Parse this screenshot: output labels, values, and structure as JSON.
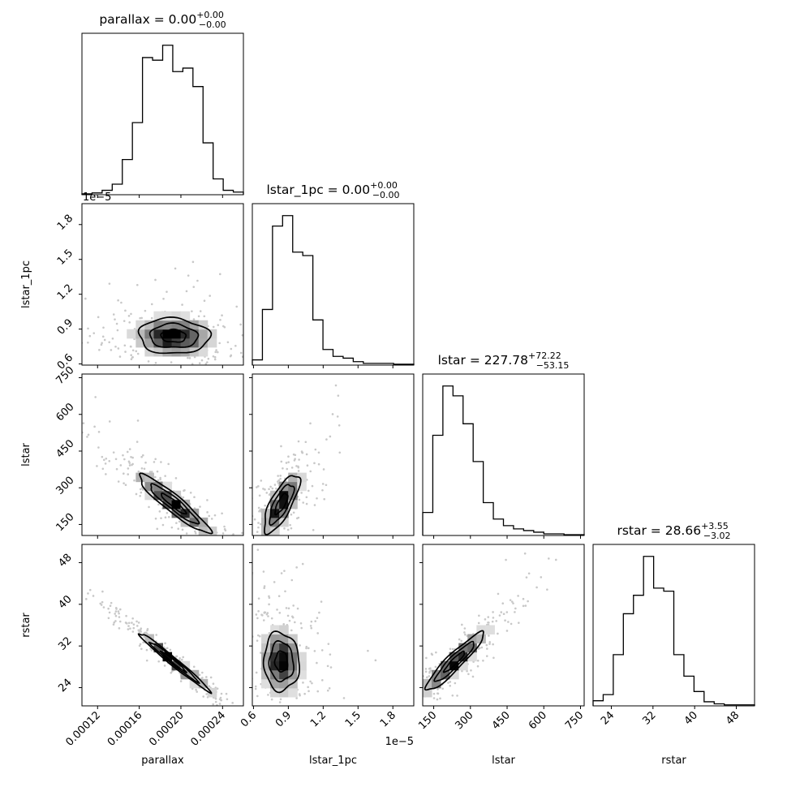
{
  "chart_data": {
    "type": "corner",
    "parameters": [
      {
        "name": "parallax",
        "xlabel": "parallax",
        "ylabel": "",
        "title": {
          "base": "parallax = 0.00",
          "sup": "+0.00",
          "sub": "−0.00"
        },
        "ticks": [
          0.00012,
          0.00016,
          0.0002,
          0.00024
        ],
        "tick_labels": [
          "0.00012",
          "0.00016",
          "0.00020",
          "0.00024"
        ],
        "range": [
          0.000105,
          0.00026
        ],
        "offset_label": "",
        "hist": [
          1,
          2,
          5,
          12,
          40,
          82,
          156,
          153,
          170,
          140,
          144,
          123,
          59,
          18,
          5,
          3
        ]
      },
      {
        "name": "lstar_1pc",
        "xlabel": "lstar_1pc",
        "ylabel": "lstar_1pc",
        "title": {
          "base": "lstar_1pc = 0.00",
          "sup": "+0.00",
          "sub": "−0.00"
        },
        "ticks": [
          0.6,
          0.9,
          1.2,
          1.5,
          1.8
        ],
        "tick_labels": [
          "0.6",
          "0.9",
          "1.2",
          "1.5",
          "1.8"
        ],
        "range": [
          0.59,
          1.98
        ],
        "offset_label": "1e−5",
        "hist": [
          3,
          32,
          80,
          86,
          65,
          63,
          26,
          9,
          5,
          4,
          2,
          1,
          1,
          1,
          0.5,
          0.5
        ]
      },
      {
        "name": "lstar",
        "xlabel": "lstar",
        "ylabel": "lstar",
        "title": {
          "base": "lstar = 227.78",
          "sup": "+72.22",
          "sub": "−53.15"
        },
        "ticks": [
          150,
          300,
          450,
          600,
          750
        ],
        "tick_labels": [
          "150",
          "300",
          "450",
          "600",
          "750"
        ],
        "range": [
          105,
          765
        ],
        "offset_label": "",
        "hist": [
          14,
          61,
          91,
          85,
          68,
          45,
          20,
          10,
          6,
          4,
          3,
          2,
          1,
          1,
          0.5,
          0.5
        ]
      },
      {
        "name": "rstar",
        "xlabel": "rstar",
        "ylabel": "rstar",
        "title": {
          "base": "rstar = 28.66",
          "sup": "+3.55",
          "sub": "−3.02"
        },
        "ticks": [
          24,
          32,
          40,
          48
        ],
        "tick_labels": [
          "24",
          "32",
          "40",
          "48"
        ],
        "range": [
          20.5,
          51.5
        ],
        "offset_label": "",
        "hist": [
          5,
          11,
          50,
          90,
          108,
          146,
          115,
          112,
          50,
          29,
          14,
          4,
          2,
          1,
          1,
          1
        ]
      }
    ],
    "pairs": [
      {
        "row": 1,
        "col": 0,
        "center": [
          0.000193,
          0.84
        ],
        "sigma": [
          2e-05,
          0.09
        ],
        "rho": -0.05
      },
      {
        "row": 2,
        "col": 0,
        "center": [
          0.000193,
          235
        ],
        "sigma": [
          2e-05,
          70
        ],
        "rho": -0.93
      },
      {
        "row": 2,
        "col": 1,
        "center": [
          0.84,
          235
        ],
        "sigma": [
          0.09,
          70
        ],
        "rho": 0.75
      },
      {
        "row": 3,
        "col": 0,
        "center": [
          0.000193,
          29.0
        ],
        "sigma": [
          2e-05,
          3.3
        ],
        "rho": -0.985
      },
      {
        "row": 3,
        "col": 1,
        "center": [
          0.84,
          29.0
        ],
        "sigma": [
          0.09,
          3.3
        ],
        "rho": -0.05
      },
      {
        "row": 3,
        "col": 2,
        "center": [
          235,
          29.0
        ],
        "sigma": [
          70,
          3.3
        ],
        "rho": 0.93
      }
    ],
    "contour_levels": [
      0.5,
      1.0,
      1.5
    ],
    "grid": false,
    "legend": "none"
  },
  "colors": {
    "line": "#000000",
    "points": "#c8c8c8",
    "density": "#000000"
  }
}
